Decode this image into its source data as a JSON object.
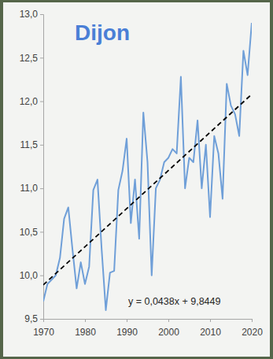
{
  "chart_data": {
    "type": "line",
    "title": "Dijon",
    "x": [
      1970,
      1971,
      1972,
      1973,
      1974,
      1975,
      1976,
      1977,
      1978,
      1979,
      1980,
      1981,
      1982,
      1983,
      1984,
      1985,
      1986,
      1987,
      1988,
      1989,
      1990,
      1991,
      1992,
      1993,
      1994,
      1995,
      1996,
      1997,
      1998,
      1999,
      2000,
      2001,
      2002,
      2003,
      2004,
      2005,
      2006,
      2007,
      2008,
      2009,
      2010,
      2011,
      2012,
      2013,
      2014,
      2015,
      2016,
      2017,
      2018,
      2019,
      2020
    ],
    "series": [
      {
        "color": "#6f9fd8",
        "values": [
          9.7,
          9.9,
          9.95,
          10.0,
          10.2,
          10.65,
          10.78,
          10.3,
          9.85,
          10.15,
          9.9,
          10.1,
          10.98,
          11.1,
          10.3,
          9.6,
          10.03,
          10.05,
          10.98,
          11.2,
          11.57,
          10.6,
          11.1,
          10.42,
          11.87,
          11.3,
          10.0,
          11.0,
          11.1,
          11.3,
          11.35,
          11.45,
          11.4,
          12.28,
          11.0,
          11.35,
          11.3,
          11.78,
          11.0,
          11.5,
          10.67,
          11.6,
          11.4,
          10.88,
          12.2,
          11.95,
          11.85,
          11.6,
          12.58,
          12.3,
          12.9
        ]
      },
      {
        "color": "#000000",
        "line_style": "dashed",
        "x": [
          1970,
          2020
        ],
        "values": [
          9.89,
          12.08
        ]
      }
    ],
    "annotations": [
      "y = 0,0438x + 9,8449"
    ],
    "xlim": [
      1970,
      2020
    ],
    "xticks": [
      1970,
      1980,
      1990,
      2000,
      2010,
      2020
    ],
    "ylim": [
      9.5,
      13.0
    ],
    "yticks": [
      {
        "value": 9.5,
        "label": "9,5"
      },
      {
        "value": 10.0,
        "label": "10,0"
      },
      {
        "value": 10.5,
        "label": "10,5"
      },
      {
        "value": 11.0,
        "label": "11,0"
      },
      {
        "value": 11.5,
        "label": "11,5"
      },
      {
        "value": 12.0,
        "label": "12,0"
      },
      {
        "value": 12.5,
        "label": "12,5"
      },
      {
        "value": 13.0,
        "label": "13,0"
      }
    ],
    "grid": false
  }
}
